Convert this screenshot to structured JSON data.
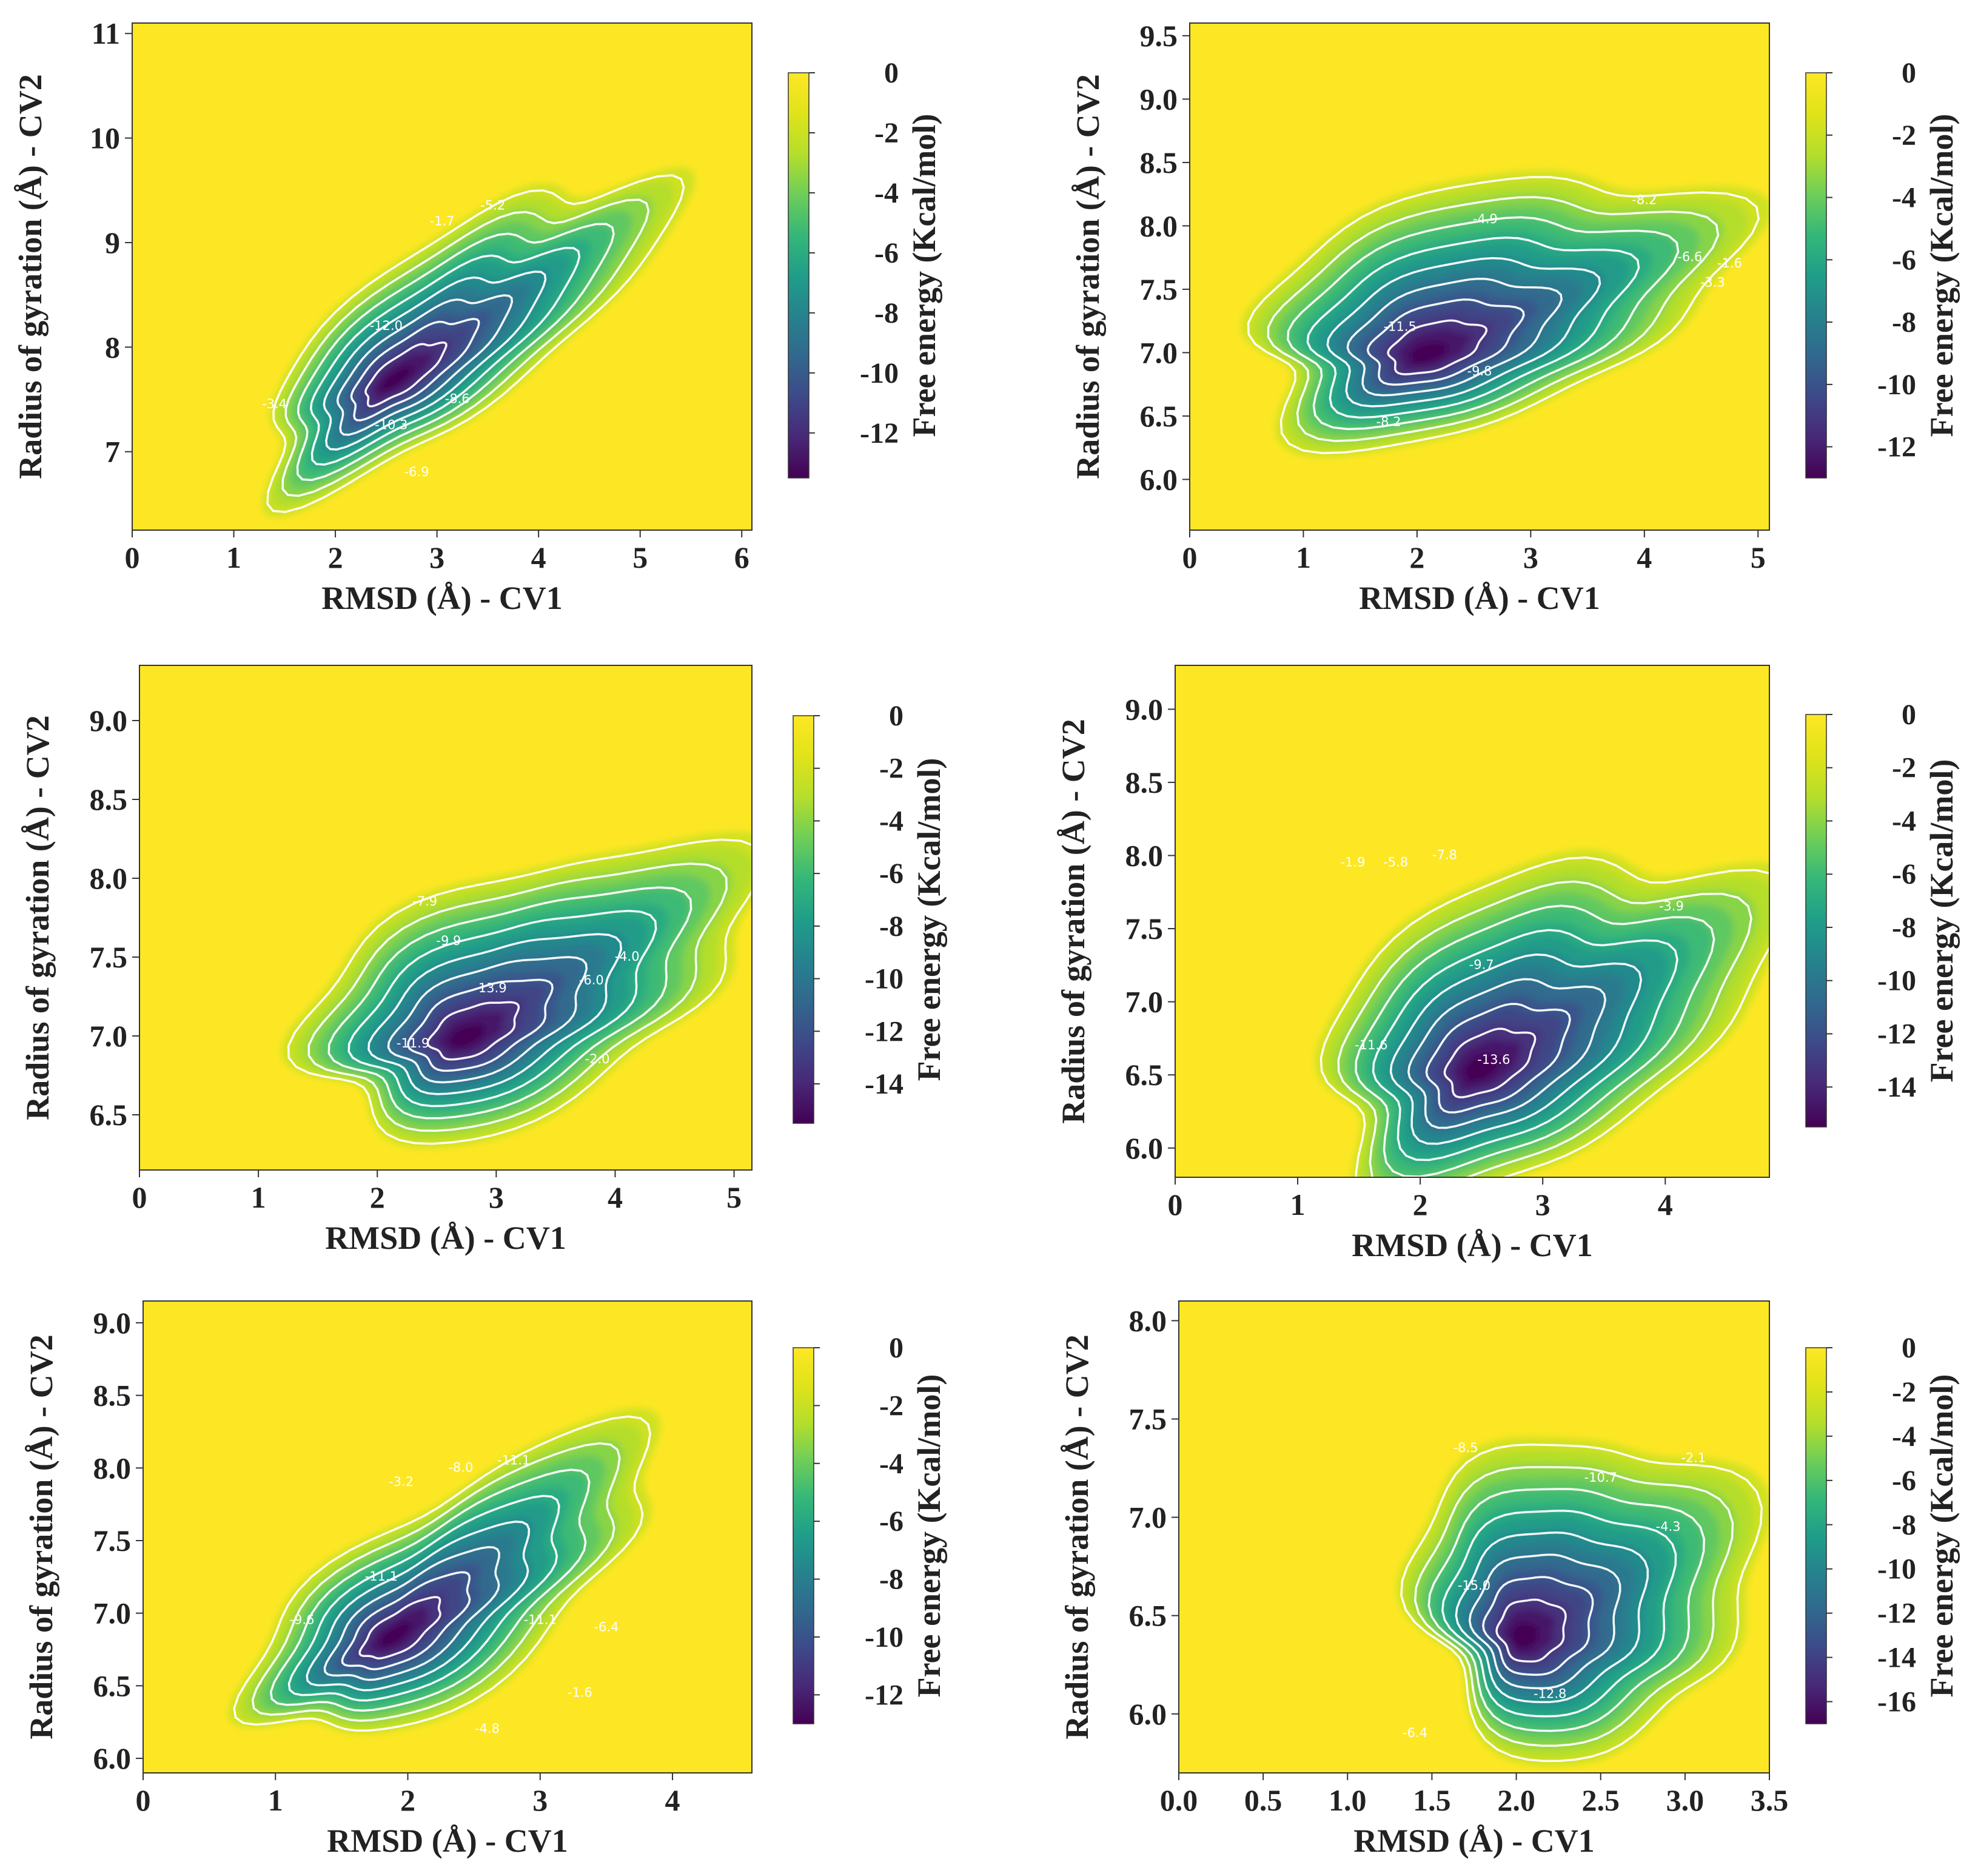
{
  "chart_data": [
    {
      "type": "heatmap",
      "panel": "top-left",
      "title": "",
      "xlabel": "RMSD (Å) - CV1",
      "ylabel": "Radius of gyration (Å) - CV2",
      "colorbar_label": "Free energy (Kcal/mol)",
      "xlim": [
        0,
        6.1
      ],
      "ylim": [
        6.25,
        11.1
      ],
      "xticks": [
        0,
        1,
        2,
        3,
        4,
        5,
        6
      ],
      "xtick_labels": [
        "0",
        "1",
        "2",
        "3",
        "4",
        "5",
        "6"
      ],
      "yticks": [
        7,
        8,
        9,
        10,
        11
      ],
      "ytick_labels": [
        "7",
        "8",
        "9",
        "10",
        "11"
      ],
      "cbar_range": [
        -13.5,
        0
      ],
      "cbar_ticks": [
        0,
        -2,
        -4,
        -6,
        -8,
        -10,
        -12
      ],
      "cbar_tick_labels": [
        "0",
        "-2",
        "-4",
        "-6",
        "-8",
        "-10",
        "-12"
      ],
      "minimum": {
        "x": 2.6,
        "y": 7.7,
        "value": -13.5
      },
      "contour_labels": [
        {
          "text": "-1.7",
          "x": 3.05,
          "y": 9.2
        },
        {
          "text": "-5.2",
          "x": 3.55,
          "y": 9.35
        },
        {
          "text": "-3.4",
          "x": 1.4,
          "y": 7.45
        },
        {
          "text": "-12.0",
          "x": 2.5,
          "y": 8.2
        },
        {
          "text": "-10.3",
          "x": 2.55,
          "y": 7.25
        },
        {
          "text": "-8.6",
          "x": 3.2,
          "y": 7.5
        },
        {
          "text": "-6.9",
          "x": 2.8,
          "y": 6.8
        }
      ]
    },
    {
      "type": "heatmap",
      "panel": "top-right",
      "title": "",
      "xlabel": "RMSD (Å) - CV1",
      "ylabel": "Radius of gyration (Å) - CV2",
      "colorbar_label": "Free energy (Kcal/mol)",
      "xlim": [
        0,
        5.1
      ],
      "ylim": [
        5.6,
        9.6
      ],
      "xticks": [
        0,
        1,
        2,
        3,
        4,
        5
      ],
      "xtick_labels": [
        "0",
        "1",
        "2",
        "3",
        "4",
        "5"
      ],
      "yticks": [
        6.0,
        6.5,
        7.0,
        7.5,
        8.0,
        8.5,
        9.0,
        9.5
      ],
      "ytick_labels": [
        "6.0",
        "6.5",
        "7.0",
        "7.5",
        "8.0",
        "8.5",
        "9.0",
        "9.5"
      ],
      "cbar_range": [
        -13,
        0
      ],
      "cbar_ticks": [
        0,
        -2,
        -4,
        -6,
        -8,
        -10,
        -12
      ],
      "cbar_tick_labels": [
        "0",
        "-2",
        "-4",
        "-6",
        "-8",
        "-10",
        "-12"
      ],
      "minimum": {
        "x": 2.1,
        "y": 7.0,
        "value": -13.0
      },
      "contour_labels": [
        {
          "text": "-4.9",
          "x": 2.6,
          "y": 8.05
        },
        {
          "text": "-8.2",
          "x": 4.0,
          "y": 8.2
        },
        {
          "text": "-6.6",
          "x": 4.4,
          "y": 7.75
        },
        {
          "text": "-3.3",
          "x": 4.6,
          "y": 7.55
        },
        {
          "text": "-1.6",
          "x": 4.75,
          "y": 7.7
        },
        {
          "text": "-11.5",
          "x": 1.85,
          "y": 7.2
        },
        {
          "text": "-9.8",
          "x": 2.55,
          "y": 6.85
        },
        {
          "text": "-8.2",
          "x": 1.75,
          "y": 6.45
        }
      ]
    },
    {
      "type": "heatmap",
      "panel": "middle-left",
      "title": "",
      "xlabel": "RMSD (Å) - CV1",
      "ylabel": "Radius of gyration (Å) - CV2",
      "colorbar_label": "Free energy (Kcal/mol)",
      "xlim": [
        0,
        5.15
      ],
      "ylim": [
        6.15,
        9.35
      ],
      "xticks": [
        0,
        1,
        2,
        3,
        4,
        5
      ],
      "xtick_labels": [
        "0",
        "1",
        "2",
        "3",
        "4",
        "5"
      ],
      "yticks": [
        6.5,
        7.0,
        7.5,
        8.0,
        8.5,
        9.0
      ],
      "ytick_labels": [
        "6.5",
        "7.0",
        "7.5",
        "8.0",
        "8.5",
        "9.0"
      ],
      "cbar_range": [
        -15.5,
        0
      ],
      "cbar_ticks": [
        0,
        -2,
        -4,
        -6,
        -8,
        -10,
        -12,
        -14
      ],
      "cbar_tick_labels": [
        "0",
        "-2",
        "-4",
        "-6",
        "-8",
        "-10",
        "-12",
        "-14"
      ],
      "minimum": {
        "x": 2.75,
        "y": 7.0,
        "value": -15.5
      },
      "contour_labels": [
        {
          "text": "-7.9",
          "x": 2.4,
          "y": 7.85
        },
        {
          "text": "-9.9",
          "x": 2.6,
          "y": 7.6
        },
        {
          "text": "-13.9",
          "x": 2.95,
          "y": 7.3
        },
        {
          "text": "-11.9",
          "x": 2.3,
          "y": 6.95
        },
        {
          "text": "-6.0",
          "x": 3.8,
          "y": 7.35
        },
        {
          "text": "-4.0",
          "x": 4.1,
          "y": 7.5
        },
        {
          "text": "-2.0",
          "x": 3.85,
          "y": 6.85
        }
      ]
    },
    {
      "type": "heatmap",
      "panel": "middle-right",
      "title": "",
      "xlabel": "RMSD (Å) - CV1",
      "ylabel": "Radius of gyration (Å) - CV2",
      "colorbar_label": "Free energy (Kcal/mol)",
      "xlim": [
        0,
        4.85
      ],
      "ylim": [
        5.8,
        9.3
      ],
      "xticks": [
        0,
        1,
        2,
        3,
        4
      ],
      "xtick_labels": [
        "0",
        "1",
        "2",
        "3",
        "4"
      ],
      "yticks": [
        6.0,
        6.5,
        7.0,
        7.5,
        8.0,
        8.5,
        9.0
      ],
      "ytick_labels": [
        "6.0",
        "6.5",
        "7.0",
        "7.5",
        "8.0",
        "8.5",
        "9.0"
      ],
      "cbar_range": [
        -15.5,
        0
      ],
      "cbar_ticks": [
        0,
        -2,
        -4,
        -6,
        -8,
        -10,
        -12,
        -14
      ],
      "cbar_tick_labels": [
        "0",
        "-2",
        "-4",
        "-6",
        "-8",
        "-10",
        "-12",
        "-14"
      ],
      "minimum": {
        "x": 2.5,
        "y": 6.55,
        "value": -15.5
      },
      "contour_labels": [
        {
          "text": "-1.9",
          "x": 1.45,
          "y": 7.95
        },
        {
          "text": "-5.8",
          "x": 1.8,
          "y": 7.95
        },
        {
          "text": "-7.8",
          "x": 2.2,
          "y": 8.0
        },
        {
          "text": "-9.7",
          "x": 2.5,
          "y": 7.25
        },
        {
          "text": "-11.6",
          "x": 1.6,
          "y": 6.7
        },
        {
          "text": "-13.6",
          "x": 2.6,
          "y": 6.6
        },
        {
          "text": "-3.9",
          "x": 4.05,
          "y": 7.65
        }
      ]
    },
    {
      "type": "heatmap",
      "panel": "bottom-left",
      "title": "",
      "xlabel": "RMSD (Å) - CV1",
      "ylabel": "Radius of gyration (Å) - CV2",
      "colorbar_label": "Free energy (Kcal/mol)",
      "xlim": [
        0,
        4.6
      ],
      "ylim": [
        5.9,
        9.15
      ],
      "xticks": [
        0,
        1,
        2,
        3,
        4
      ],
      "xtick_labels": [
        "0",
        "1",
        "2",
        "3",
        "4"
      ],
      "yticks": [
        6.0,
        6.5,
        7.0,
        7.5,
        8.0,
        8.5,
        9.0
      ],
      "ytick_labels": [
        "6.0",
        "6.5",
        "7.0",
        "7.5",
        "8.0",
        "8.5",
        "9.0"
      ],
      "cbar_range": [
        -13,
        0
      ],
      "cbar_ticks": [
        0,
        -2,
        -4,
        -6,
        -8,
        -10,
        -12
      ],
      "cbar_tick_labels": [
        "0",
        "-2",
        "-4",
        "-6",
        "-8",
        "-10",
        "-12"
      ],
      "minimum": {
        "x": 1.9,
        "y": 6.85,
        "value": -13.0
      },
      "contour_labels": [
        {
          "text": "-3.2",
          "x": 1.95,
          "y": 7.9
        },
        {
          "text": "-8.0",
          "x": 2.4,
          "y": 8.0
        },
        {
          "text": "-11.1",
          "x": 2.8,
          "y": 8.05
        },
        {
          "text": "-11.1",
          "x": 1.8,
          "y": 7.25
        },
        {
          "text": "-9.6",
          "x": 1.2,
          "y": 6.95
        },
        {
          "text": "-11.1",
          "x": 3.0,
          "y": 6.95
        },
        {
          "text": "-6.4",
          "x": 3.5,
          "y": 6.9
        },
        {
          "text": "-4.8",
          "x": 2.6,
          "y": 6.2
        },
        {
          "text": "-1.6",
          "x": 3.3,
          "y": 6.45
        }
      ]
    },
    {
      "type": "heatmap",
      "panel": "bottom-right",
      "title": "",
      "xlabel": "RMSD (Å) - CV1",
      "ylabel": "Radius of gyration (Å) - CV2",
      "colorbar_label": "Free energy (Kcal/mol)",
      "xlim": [
        0,
        3.5
      ],
      "ylim": [
        5.7,
        8.1
      ],
      "xticks": [
        0.0,
        0.5,
        1.0,
        1.5,
        2.0,
        2.5,
        3.0,
        3.5
      ],
      "xtick_labels": [
        "0.0",
        "0.5",
        "1.0",
        "1.5",
        "2.0",
        "2.5",
        "3.0",
        "3.5"
      ],
      "yticks": [
        6.0,
        6.5,
        7.0,
        7.5,
        8.0
      ],
      "ytick_labels": [
        "6.0",
        "6.5",
        "7.0",
        "7.5",
        "8.0"
      ],
      "cbar_range": [
        -17,
        0
      ],
      "cbar_ticks": [
        0,
        -2,
        -4,
        -6,
        -8,
        -10,
        -12,
        -14,
        -16
      ],
      "cbar_tick_labels": [
        "0",
        "-2",
        "-4",
        "-6",
        "-8",
        "-10",
        "-12",
        "-14",
        "-16"
      ],
      "minimum": {
        "x": 2.05,
        "y": 6.4,
        "value": -17.0
      },
      "contour_labels": [
        {
          "text": "-8.5",
          "x": 1.7,
          "y": 7.35
        },
        {
          "text": "-10.7",
          "x": 2.5,
          "y": 7.2
        },
        {
          "text": "-2.1",
          "x": 3.05,
          "y": 7.3
        },
        {
          "text": "-4.3",
          "x": 2.9,
          "y": 6.95
        },
        {
          "text": "-15.0",
          "x": 1.75,
          "y": 6.65
        },
        {
          "text": "-12.8",
          "x": 2.2,
          "y": 6.1
        },
        {
          "text": "-6.4",
          "x": 1.4,
          "y": 5.9
        }
      ]
    }
  ]
}
